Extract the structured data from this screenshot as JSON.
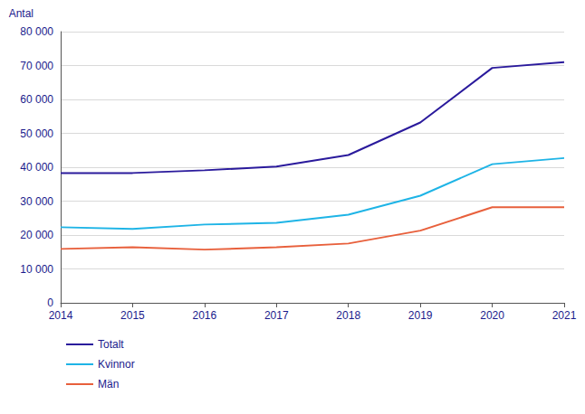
{
  "chart_data": {
    "type": "line",
    "ylabel": "Antal",
    "categories": [
      "2014",
      "2015",
      "2016",
      "2017",
      "2018",
      "2019",
      "2020",
      "2021"
    ],
    "series": [
      {
        "name": "Totalt",
        "color": "#2a1a9c",
        "values": [
          38300,
          38300,
          39100,
          40200,
          43600,
          53200,
          69300,
          71000
        ]
      },
      {
        "name": "Kvinnor",
        "color": "#1eb4e6",
        "values": [
          22300,
          21800,
          23100,
          23600,
          26000,
          31600,
          40900,
          42700
        ]
      },
      {
        "name": "Män",
        "color": "#e8603c",
        "values": [
          15900,
          16400,
          15700,
          16400,
          17500,
          21300,
          28200,
          28200
        ]
      }
    ],
    "ylim": [
      0,
      80000
    ],
    "yticks": [
      {
        "value": 0,
        "label": "0"
      },
      {
        "value": 10000,
        "label": "10 000"
      },
      {
        "value": 20000,
        "label": "20 000"
      },
      {
        "value": 30000,
        "label": "30 000"
      },
      {
        "value": 40000,
        "label": "40 000"
      },
      {
        "value": 50000,
        "label": "50 000"
      },
      {
        "value": 60000,
        "label": "60 000"
      },
      {
        "value": 70000,
        "label": "70 000"
      },
      {
        "value": 80000,
        "label": "80 000"
      }
    ],
    "grid": true,
    "legend": "bottom-left"
  }
}
